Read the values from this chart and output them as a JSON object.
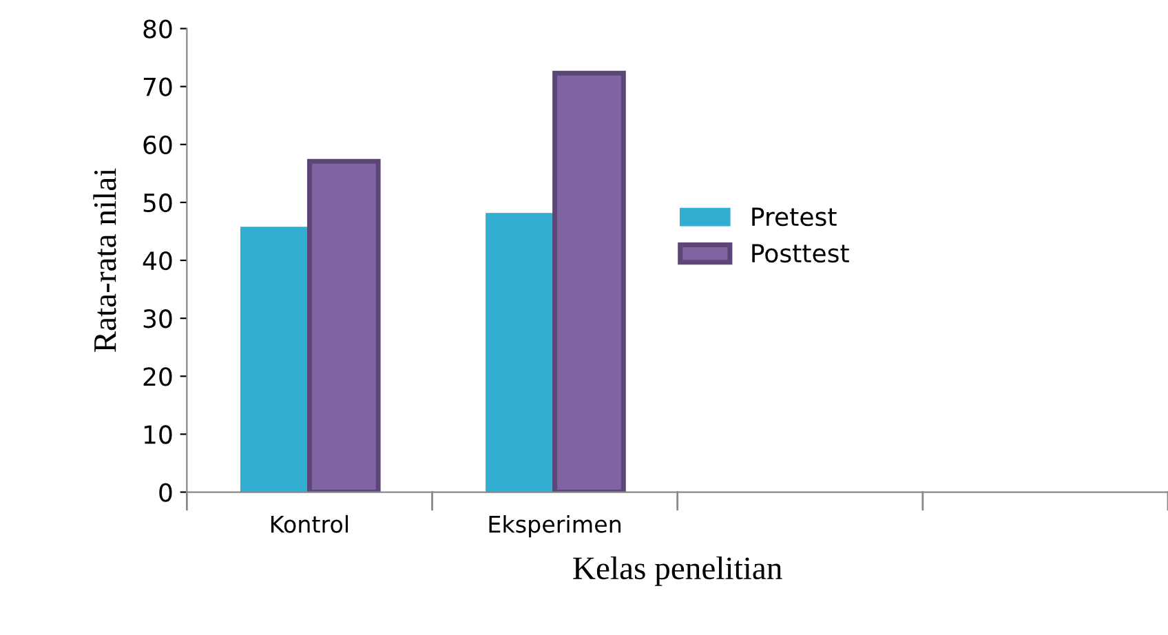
{
  "chart_data": {
    "type": "bar",
    "xlabel": "Kelas penelitian",
    "ylabel": "Rata-rata nilai",
    "categories": [
      "Kontrol",
      "Eksperimen",
      null,
      null
    ],
    "series": [
      {
        "name": "Pretest",
        "color": "#31aed1",
        "values": [
          45.7,
          48.1,
          null,
          null
        ]
      },
      {
        "name": "Posttest",
        "color": "#8064a2",
        "values": [
          57.1,
          72.3,
          null,
          null
        ]
      }
    ],
    "ylim": [
      0,
      80
    ],
    "yticks": [
      0,
      10,
      20,
      30,
      40,
      50,
      60,
      70,
      80
    ],
    "grid": false,
    "legend": "right"
  }
}
